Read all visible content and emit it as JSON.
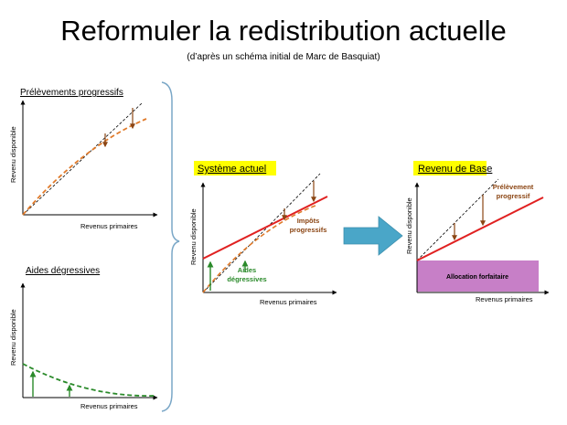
{
  "title": "Reformuler la redistribution actuelle",
  "subtitle": "(d’après un schéma initial de Marc de Basquiat)",
  "panels": {
    "progressive": {
      "title": "Prélèvements progressifs",
      "ylabel": "Revenu disponible",
      "xlabel": "Revenus primaires"
    },
    "degressive": {
      "title": "Aides dégressives",
      "ylabel": "Revenu disponible",
      "xlabel": "Revenus primaires"
    },
    "current": {
      "title": "Système actuel",
      "ylabel": "Revenu disponible",
      "xlabel": "Revenus primaires",
      "label_taxes_1": "Impôts",
      "label_taxes_2": "progressifs",
      "label_aid_1": "Aides",
      "label_aid_2": "dégressives"
    },
    "basic_income": {
      "title": "Revenu de Base",
      "ylabel": "Revenu disponible",
      "xlabel": "Revenus primaires",
      "label_levy_1": "Prélèvement",
      "label_levy_2": "progressif",
      "label_allocation": "Allocation forfaitaire"
    }
  },
  "colors": {
    "orange_dashed": "#e07a2a",
    "brown_arrow": "#8b4513",
    "green": "#2a8a2a",
    "red": "#e02020",
    "highlight": "#ffff00",
    "arrow_blue": "#4aa6c8",
    "allocation_fill": "#c77fc7"
  }
}
